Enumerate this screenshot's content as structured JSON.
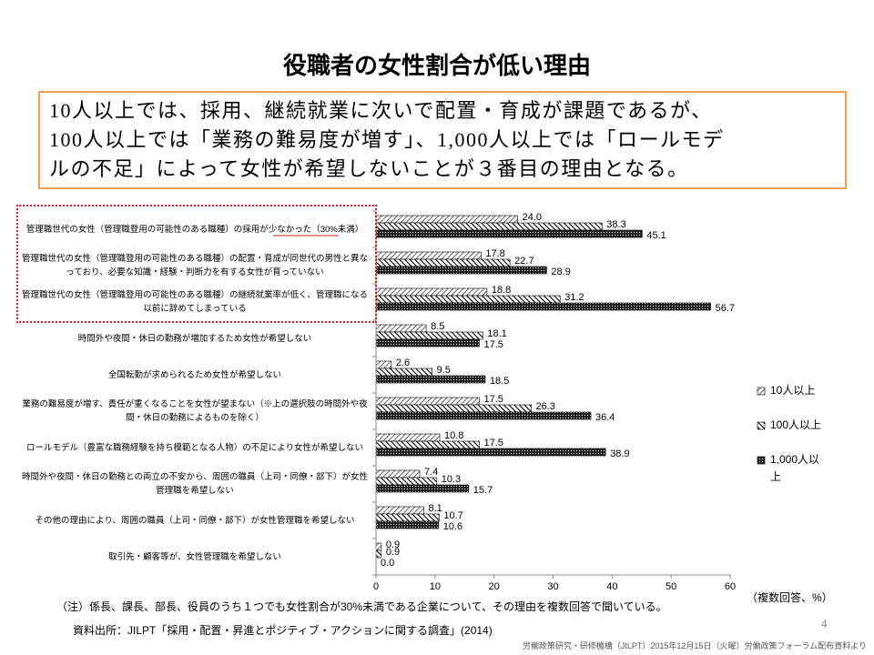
{
  "header": {
    "title": "役職者の女性割合が低い理由",
    "callout": [
      "10人以上では、採用、継続就業に次いで配置・育成が課題であるが、",
      "100人以上では「業務の難易度が増す」、1,000人以上では「ロールモデ",
      "ルの不足」によって女性が希望しないことが３番目の理由となる。"
    ]
  },
  "chart_data": {
    "type": "bar",
    "orientation": "horizontal",
    "categories": [
      "管理職世代の女性（管理職登用の可能性のある職種）の採用が少なかった（30%未満）",
      "管理職世代の女性（管理職登用の可能性のある職種）の配置・育成が同世代の男性と異なっており、必要な知識・経験・判断力を有する女性が育っていない",
      "管理職世代の女性（管理職登用の可能性のある職種）の継続就業率が低く、管理職になる以前に辞めてしまっている",
      "時間外や夜間・休日の勤務が増加するため女性が希望しない",
      "全国転勤が求められるため女性が希望しない",
      "業務の難易度が増す、責任が重くなることを女性が望まない（※上の選択肢の時間外や夜間・休日の勤務によるものを除く）",
      "ロールモデル（豊富な職務経験を持ち模範となる人物）の不足により女性が希望しない",
      "時間外や夜間・休日の勤務との両立の不安から、周囲の職員（上司・同僚・部下）が女性管理職を希望しない",
      "その他の理由により、周囲の職員（上司・同僚・部下）が女性管理職を希望しない",
      "取引先・顧客等が、女性管理職を希望しない"
    ],
    "series": [
      {
        "name": "10人以上",
        "color": "#000000",
        "values": [
          24.0,
          17.8,
          18.8,
          8.5,
          2.6,
          17.5,
          10.8,
          7.4,
          8.1,
          0.9
        ],
        "value_labels": [
          "24.0",
          "17.8",
          "18.8",
          "8.5",
          "2.6",
          "17.5",
          "10.8",
          "7.4",
          "8.1",
          "0.9"
        ]
      },
      {
        "name": "100人以上",
        "color": "#000000",
        "values": [
          38.3,
          22.7,
          31.2,
          18.1,
          9.5,
          26.3,
          17.5,
          10.3,
          10.7,
          0.9
        ],
        "value_labels": [
          "38.3",
          "22.7",
          "31.2",
          "18.1",
          "9.5",
          "26.3",
          "17.5",
          "10.3",
          "10.7",
          "0.9"
        ]
      },
      {
        "name": "1,000人以上",
        "color": "#000000",
        "values": [
          45.1,
          28.9,
          56.7,
          17.5,
          18.5,
          36.4,
          38.9,
          15.7,
          10.6,
          0.0
        ],
        "value_labels": [
          "45.1",
          "28.9",
          "56.7",
          "17.5",
          "18.5",
          "36.4",
          "38.9",
          "15.7",
          "10.6",
          "0.0"
        ]
      }
    ],
    "xlim": [
      0,
      60
    ],
    "xticks": [
      0,
      10,
      20,
      30,
      40,
      50,
      60
    ],
    "grid": false,
    "legend": "right",
    "xlabel": "（複数回答、%）"
  },
  "footer": {
    "note": "（注）係長、課長、部長、役員のうち１つでも女性割合が30%未満である企業について、その理由を複数回答で聞いている。",
    "source": "資料出所：JILPT「採用・配置・昇進とポジティブ・アクションに関する調査」(2014)",
    "credit": "労働政策研究・研修機構（JILPT）2015年12月15日（火曜）労働政策フォーラム配布資料より",
    "page": "4"
  }
}
